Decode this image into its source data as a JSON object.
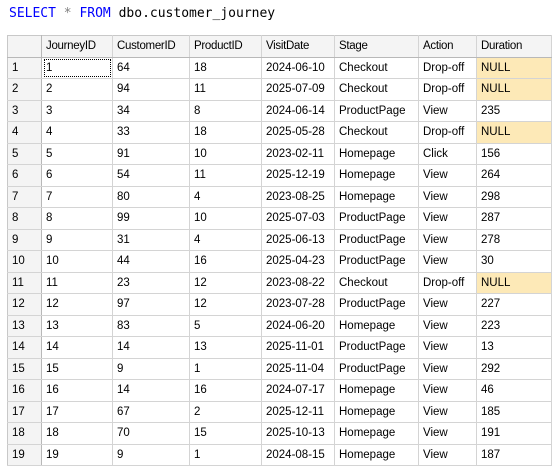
{
  "query": {
    "select_kw": "SELECT",
    "star": "*",
    "from_kw": "FROM",
    "object": "dbo.customer_journey"
  },
  "table": {
    "columns": [
      "",
      "JourneyID",
      "CustomerID",
      "ProductID",
      "VisitDate",
      "Stage",
      "Action",
      "Duration"
    ],
    "rows": [
      [
        "1",
        "1",
        "64",
        "18",
        "2024-06-10",
        "Checkout",
        "Drop-off",
        "NULL"
      ],
      [
        "2",
        "2",
        "94",
        "11",
        "2025-07-09",
        "Checkout",
        "Drop-off",
        "NULL"
      ],
      [
        "3",
        "3",
        "34",
        "8",
        "2024-06-14",
        "ProductPage",
        "View",
        "235"
      ],
      [
        "4",
        "4",
        "33",
        "18",
        "2025-05-28",
        "Checkout",
        "Drop-off",
        "NULL"
      ],
      [
        "5",
        "5",
        "91",
        "10",
        "2023-02-11",
        "Homepage",
        "Click",
        "156"
      ],
      [
        "6",
        "6",
        "54",
        "11",
        "2025-12-19",
        "Homepage",
        "View",
        "264"
      ],
      [
        "7",
        "7",
        "80",
        "4",
        "2023-08-25",
        "Homepage",
        "View",
        "298"
      ],
      [
        "8",
        "8",
        "99",
        "10",
        "2025-07-03",
        "ProductPage",
        "View",
        "287"
      ],
      [
        "9",
        "9",
        "31",
        "4",
        "2025-06-13",
        "ProductPage",
        "View",
        "278"
      ],
      [
        "10",
        "10",
        "44",
        "16",
        "2025-04-23",
        "ProductPage",
        "View",
        "30"
      ],
      [
        "11",
        "11",
        "23",
        "12",
        "2023-08-22",
        "Checkout",
        "Drop-off",
        "NULL"
      ],
      [
        "12",
        "12",
        "97",
        "12",
        "2023-07-28",
        "ProductPage",
        "View",
        "227"
      ],
      [
        "13",
        "13",
        "83",
        "5",
        "2024-06-20",
        "Homepage",
        "View",
        "223"
      ],
      [
        "14",
        "14",
        "14",
        "13",
        "2025-11-01",
        "ProductPage",
        "View",
        "13"
      ],
      [
        "15",
        "15",
        "9",
        "1",
        "2025-11-04",
        "ProductPage",
        "View",
        "292"
      ],
      [
        "16",
        "16",
        "14",
        "16",
        "2024-07-17",
        "Homepage",
        "View",
        "46"
      ],
      [
        "17",
        "17",
        "67",
        "2",
        "2025-12-11",
        "Homepage",
        "View",
        "185"
      ],
      [
        "18",
        "18",
        "70",
        "15",
        "2025-10-13",
        "Homepage",
        "View",
        "191"
      ],
      [
        "19",
        "19",
        "9",
        "1",
        "2024-08-15",
        "Homepage",
        "View",
        "187"
      ]
    ]
  },
  "colors": {
    "keyword": "#0000ff",
    "null_highlight": "#fde9b7",
    "header_bg": "#f4f4f4"
  }
}
